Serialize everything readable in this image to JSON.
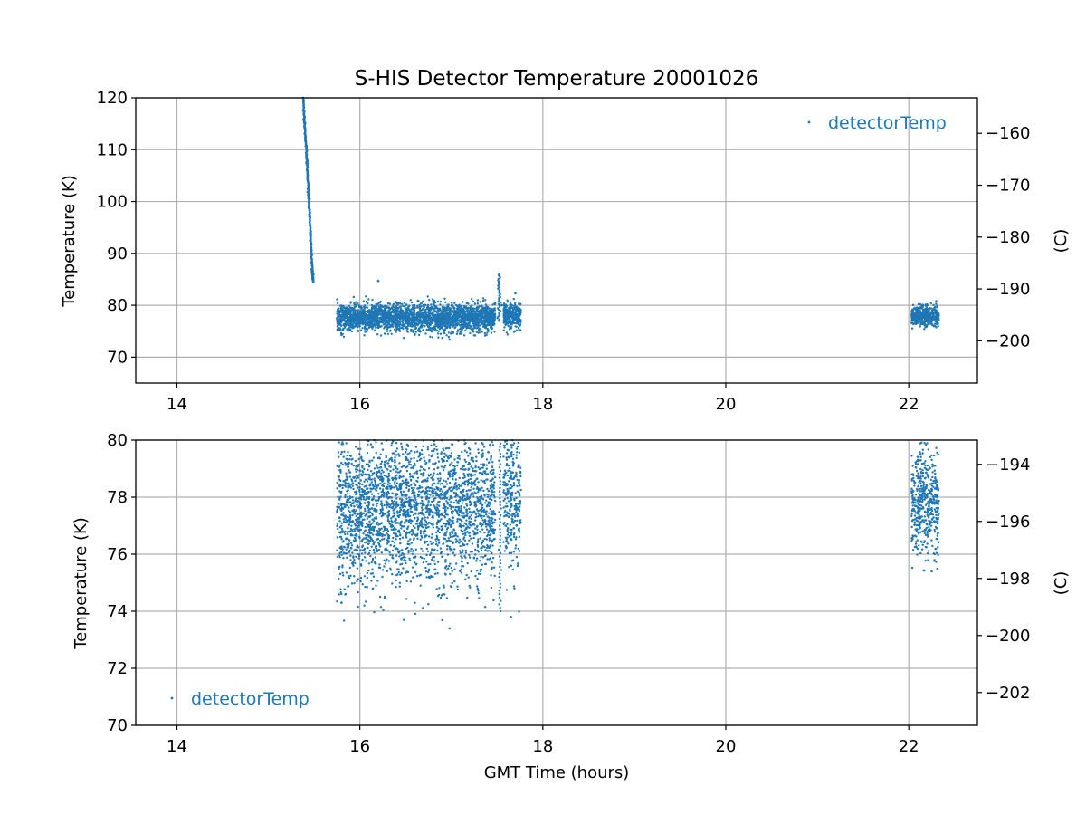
{
  "chart_data": [
    {
      "type": "scatter",
      "title": "S-HIS Detector Temperature 20001026",
      "xlabel": "",
      "ylabel": "Temperature (K)",
      "right_ylabel": "(C)",
      "xlim": [
        13.55,
        22.75
      ],
      "ylim": [
        65,
        120
      ],
      "xticks": [
        14,
        16,
        18,
        20,
        22
      ],
      "yticks": [
        70,
        80,
        90,
        100,
        110,
        120
      ],
      "right_yticks": [
        -160,
        -170,
        -180,
        -190,
        -200
      ],
      "grid": true,
      "legend": {
        "position": "top-right",
        "entries": [
          "detectorTemp"
        ]
      },
      "series": [
        {
          "name": "detectorTemp",
          "color": "#1f77b4",
          "points": [
            [
              15.38,
              120.0
            ],
            [
              15.4,
              114.0
            ],
            [
              15.42,
              108.0
            ],
            [
              15.44,
              101.0
            ],
            [
              15.46,
              94.0
            ],
            [
              15.48,
              87.0
            ],
            [
              15.49,
              84.5
            ],
            [
              15.75,
              77.5
            ],
            [
              16.0,
              77.7
            ],
            [
              16.25,
              77.4
            ],
            [
              16.5,
              77.5
            ],
            [
              16.75,
              77.8
            ],
            [
              17.0,
              77.6
            ],
            [
              17.25,
              77.5
            ],
            [
              17.45,
              77.4
            ],
            [
              17.52,
              85.8
            ],
            [
              17.55,
              80.0
            ],
            [
              17.6,
              77.5
            ],
            [
              17.7,
              78.0
            ],
            [
              15.8,
              74.3
            ],
            [
              16.2,
              84.7
            ],
            [
              16.98,
              73.4
            ],
            [
              17.7,
              82.3
            ],
            [
              22.05,
              77.8
            ],
            [
              22.2,
              78.0
            ],
            [
              22.3,
              77.5
            ],
            [
              22.3,
              80.8
            ]
          ],
          "bands": [
            {
              "x": [
                15.75,
                17.48
              ],
              "center": 77.6,
              "spread": 1.3,
              "min": 73.4,
              "max": 82.5
            },
            {
              "x": [
                17.57,
                17.76
              ],
              "center": 78.0,
              "spread": 1.3,
              "min": 73.8,
              "max": 82.5
            },
            {
              "x": [
                22.03,
                22.33
              ],
              "center": 77.8,
              "spread": 1.0,
              "min": 75.4,
              "max": 81.0
            }
          ]
        }
      ]
    },
    {
      "type": "scatter",
      "title": "",
      "xlabel": "GMT Time (hours)",
      "ylabel": "Temperature (K)",
      "right_ylabel": "(C)",
      "xlim": [
        13.55,
        22.75
      ],
      "ylim": [
        70,
        80
      ],
      "xticks": [
        14,
        16,
        18,
        20,
        22
      ],
      "yticks": [
        70,
        72,
        74,
        76,
        78,
        80
      ],
      "right_yticks": [
        -194,
        -196,
        -198,
        -200,
        -202
      ],
      "grid": true,
      "legend": {
        "position": "bottom-left",
        "entries": [
          "detectorTemp"
        ]
      },
      "series": [
        {
          "name": "detectorTemp",
          "color": "#1f77b4",
          "points": [
            [
              15.75,
              77.5
            ],
            [
              16.0,
              77.7
            ],
            [
              16.25,
              77.4
            ],
            [
              16.5,
              77.5
            ],
            [
              16.75,
              77.8
            ],
            [
              17.0,
              77.6
            ],
            [
              17.25,
              77.5
            ],
            [
              17.45,
              77.4
            ],
            [
              15.8,
              74.3
            ],
            [
              16.98,
              73.4
            ],
            [
              17.65,
              73.8
            ],
            [
              22.05,
              77.8
            ],
            [
              22.2,
              78.0
            ],
            [
              22.3,
              77.5
            ],
            [
              22.25,
              75.4
            ]
          ],
          "bands": [
            {
              "x": [
                15.75,
                17.48
              ],
              "center": 77.6,
              "spread": 1.3,
              "min": 73.4,
              "max": 80
            },
            {
              "x": [
                17.57,
                17.76
              ],
              "center": 78.0,
              "spread": 1.3,
              "min": 73.8,
              "max": 80
            },
            {
              "x": [
                22.03,
                22.33
              ],
              "center": 77.8,
              "spread": 1.0,
              "min": 75.4,
              "max": 80
            }
          ]
        }
      ]
    }
  ]
}
